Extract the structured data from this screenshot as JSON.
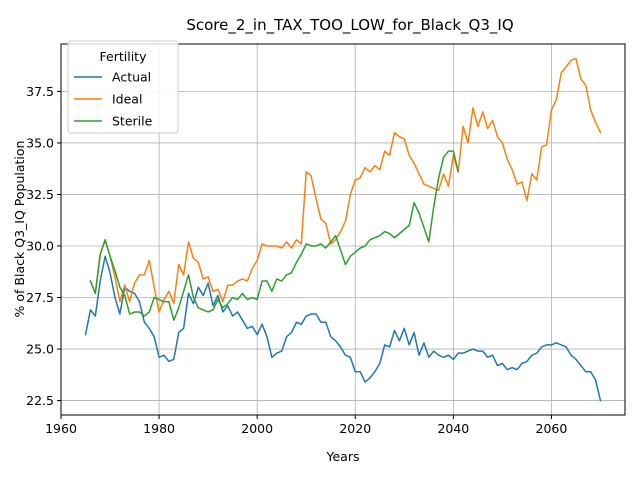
{
  "chart_data": {
    "type": "line",
    "title": "Score_2_in_TAX_TOO_LOW_for_Black_Q3_IQ",
    "xlabel": "Years",
    "ylabel": "% of Black Q3_IQ Population",
    "xlim": [
      1960,
      2075
    ],
    "ylim": [
      21.8,
      39.8
    ],
    "xticks": [
      1960,
      1980,
      2000,
      2020,
      2040,
      2060
    ],
    "yticks": [
      22.5,
      25.0,
      27.5,
      30.0,
      32.5,
      35.0,
      37.5
    ],
    "ytick_labels": [
      "22.5",
      "25.0",
      "27.5",
      "30.0",
      "32.5",
      "35.0",
      "37.5"
    ],
    "grid": true,
    "legend": {
      "title": "Fertility",
      "placement": "top-left"
    },
    "series": [
      {
        "name": "Actual",
        "color": "#1f77b4",
        "points": [
          [
            1965,
            25.7
          ],
          [
            1966,
            26.9
          ],
          [
            1967,
            26.6
          ],
          [
            1968,
            28.3
          ],
          [
            1969,
            29.5
          ],
          [
            1970,
            28.7
          ],
          [
            1971,
            27.5
          ],
          [
            1972,
            26.7
          ],
          [
            1973,
            28.0
          ],
          [
            1974,
            27.8
          ],
          [
            1975,
            27.7
          ],
          [
            1976,
            27.3
          ],
          [
            1977,
            26.3
          ],
          [
            1978,
            26.0
          ],
          [
            1979,
            25.6
          ],
          [
            1980,
            24.6
          ],
          [
            1981,
            24.7
          ],
          [
            1982,
            24.4
          ],
          [
            1983,
            24.5
          ],
          [
            1984,
            25.8
          ],
          [
            1985,
            26.0
          ],
          [
            1986,
            27.7
          ],
          [
            1987,
            27.2
          ],
          [
            1988,
            28.0
          ],
          [
            1989,
            27.6
          ],
          [
            1990,
            28.2
          ],
          [
            1991,
            27.1
          ],
          [
            1992,
            27.6
          ],
          [
            1993,
            26.8
          ],
          [
            1994,
            27.1
          ],
          [
            1995,
            26.6
          ],
          [
            1996,
            26.8
          ],
          [
            1997,
            26.4
          ],
          [
            1998,
            26.0
          ],
          [
            1999,
            26.1
          ],
          [
            2000,
            25.7
          ],
          [
            2001,
            26.2
          ],
          [
            2002,
            25.6
          ],
          [
            2003,
            24.6
          ],
          [
            2004,
            24.8
          ],
          [
            2005,
            24.9
          ],
          [
            2006,
            25.6
          ],
          [
            2007,
            25.8
          ],
          [
            2008,
            26.3
          ],
          [
            2009,
            26.2
          ],
          [
            2010,
            26.6
          ],
          [
            2011,
            26.7
          ],
          [
            2012,
            26.7
          ],
          [
            2013,
            26.3
          ],
          [
            2014,
            26.3
          ],
          [
            2015,
            25.6
          ],
          [
            2016,
            25.4
          ],
          [
            2017,
            25.1
          ],
          [
            2018,
            24.7
          ],
          [
            2019,
            24.6
          ],
          [
            2020,
            23.9
          ],
          [
            2021,
            23.9
          ],
          [
            2022,
            23.4
          ],
          [
            2023,
            23.6
          ],
          [
            2024,
            23.9
          ],
          [
            2025,
            24.3
          ],
          [
            2026,
            25.2
          ],
          [
            2027,
            25.1
          ],
          [
            2028,
            25.9
          ],
          [
            2029,
            25.4
          ],
          [
            2030,
            26.0
          ],
          [
            2031,
            25.2
          ],
          [
            2032,
            25.8
          ],
          [
            2033,
            24.7
          ],
          [
            2034,
            25.3
          ],
          [
            2035,
            24.6
          ],
          [
            2036,
            24.9
          ],
          [
            2037,
            24.7
          ],
          [
            2038,
            24.6
          ],
          [
            2039,
            24.7
          ],
          [
            2040,
            24.5
          ],
          [
            2041,
            24.8
          ],
          [
            2042,
            24.8
          ],
          [
            2043,
            24.9
          ],
          [
            2044,
            25.0
          ],
          [
            2045,
            24.9
          ],
          [
            2046,
            24.9
          ],
          [
            2047,
            24.6
          ],
          [
            2048,
            24.7
          ],
          [
            2049,
            24.2
          ],
          [
            2050,
            24.3
          ],
          [
            2051,
            24.0
          ],
          [
            2052,
            24.1
          ],
          [
            2053,
            24.0
          ],
          [
            2054,
            24.3
          ],
          [
            2055,
            24.4
          ],
          [
            2056,
            24.7
          ],
          [
            2057,
            24.8
          ],
          [
            2058,
            25.1
          ],
          [
            2059,
            25.2
          ],
          [
            2060,
            25.2
          ],
          [
            2061,
            25.3
          ],
          [
            2062,
            25.2
          ],
          [
            2063,
            25.1
          ],
          [
            2064,
            24.7
          ],
          [
            2065,
            24.5
          ],
          [
            2066,
            24.2
          ],
          [
            2067,
            23.9
          ],
          [
            2068,
            23.9
          ],
          [
            2069,
            23.5
          ],
          [
            2070,
            22.5
          ]
        ]
      },
      {
        "name": "Ideal",
        "color": "#ff7f0e",
        "points": [
          [
            1966,
            28.3
          ],
          [
            1967,
            27.7
          ],
          [
            1968,
            29.6
          ],
          [
            1969,
            30.3
          ],
          [
            1970,
            29.5
          ],
          [
            1971,
            28.5
          ],
          [
            1972,
            27.3
          ],
          [
            1973,
            28.1
          ],
          [
            1974,
            27.3
          ],
          [
            1975,
            28.2
          ],
          [
            1976,
            28.6
          ],
          [
            1977,
            28.6
          ],
          [
            1978,
            29.3
          ],
          [
            1979,
            28.0
          ],
          [
            1980,
            26.8
          ],
          [
            1981,
            27.4
          ],
          [
            1982,
            27.8
          ],
          [
            1983,
            27.2
          ],
          [
            1984,
            29.1
          ],
          [
            1985,
            28.6
          ],
          [
            1986,
            30.2
          ],
          [
            1987,
            29.4
          ],
          [
            1988,
            29.2
          ],
          [
            1989,
            28.4
          ],
          [
            1990,
            28.5
          ],
          [
            1991,
            27.8
          ],
          [
            1992,
            27.9
          ],
          [
            1993,
            27.3
          ],
          [
            1994,
            28.1
          ],
          [
            1995,
            28.1
          ],
          [
            1996,
            28.3
          ],
          [
            1997,
            28.4
          ],
          [
            1998,
            28.3
          ],
          [
            1999,
            28.9
          ],
          [
            2000,
            29.3
          ],
          [
            2001,
            30.1
          ],
          [
            2002,
            30.0
          ],
          [
            2003,
            30.0
          ],
          [
            2004,
            30.0
          ],
          [
            2005,
            29.9
          ],
          [
            2006,
            30.2
          ],
          [
            2007,
            29.9
          ],
          [
            2008,
            30.3
          ],
          [
            2009,
            30.1
          ],
          [
            2010,
            33.6
          ],
          [
            2011,
            33.4
          ],
          [
            2012,
            32.3
          ],
          [
            2013,
            31.3
          ],
          [
            2014,
            31.1
          ],
          [
            2015,
            30.1
          ],
          [
            2016,
            30.3
          ],
          [
            2017,
            30.7
          ],
          [
            2018,
            31.2
          ],
          [
            2019,
            32.5
          ],
          [
            2020,
            33.2
          ],
          [
            2021,
            33.3
          ],
          [
            2022,
            33.8
          ],
          [
            2023,
            33.6
          ],
          [
            2024,
            33.9
          ],
          [
            2025,
            33.7
          ],
          [
            2026,
            34.6
          ],
          [
            2027,
            34.4
          ],
          [
            2028,
            35.5
          ],
          [
            2029,
            35.3
          ],
          [
            2030,
            35.2
          ],
          [
            2031,
            34.4
          ],
          [
            2032,
            34.0
          ],
          [
            2033,
            33.5
          ],
          [
            2034,
            33.0
          ],
          [
            2035,
            32.9
          ],
          [
            2036,
            32.8
          ],
          [
            2037,
            32.7
          ],
          [
            2038,
            33.5
          ],
          [
            2039,
            32.9
          ],
          [
            2040,
            34.4
          ],
          [
            2041,
            33.6
          ],
          [
            2042,
            35.8
          ],
          [
            2043,
            35.0
          ],
          [
            2044,
            36.7
          ],
          [
            2045,
            35.8
          ],
          [
            2046,
            36.5
          ],
          [
            2047,
            35.7
          ],
          [
            2048,
            36.1
          ],
          [
            2049,
            35.3
          ],
          [
            2050,
            35.0
          ],
          [
            2051,
            34.2
          ],
          [
            2052,
            33.7
          ],
          [
            2053,
            33.0
          ],
          [
            2054,
            33.1
          ],
          [
            2055,
            32.2
          ],
          [
            2056,
            33.5
          ],
          [
            2057,
            33.2
          ],
          [
            2058,
            34.8
          ],
          [
            2059,
            34.9
          ],
          [
            2060,
            36.6
          ],
          [
            2061,
            37.1
          ],
          [
            2062,
            38.4
          ],
          [
            2063,
            38.7
          ],
          [
            2064,
            39.0
          ],
          [
            2065,
            39.1
          ],
          [
            2066,
            38.1
          ],
          [
            2067,
            37.8
          ],
          [
            2068,
            36.6
          ],
          [
            2069,
            36.0
          ],
          [
            2070,
            35.5
          ]
        ]
      },
      {
        "name": "Sterile",
        "color": "#2ca02c",
        "points": [
          [
            1966,
            28.3
          ],
          [
            1967,
            27.7
          ],
          [
            1968,
            29.6
          ],
          [
            1969,
            30.3
          ],
          [
            1970,
            29.5
          ],
          [
            1971,
            28.8
          ],
          [
            1972,
            28.0
          ],
          [
            1973,
            27.6
          ],
          [
            1974,
            26.7
          ],
          [
            1975,
            26.8
          ],
          [
            1976,
            26.8
          ],
          [
            1977,
            26.6
          ],
          [
            1978,
            26.8
          ],
          [
            1979,
            27.5
          ],
          [
            1980,
            27.4
          ],
          [
            1981,
            27.3
          ],
          [
            1982,
            27.3
          ],
          [
            1983,
            26.4
          ],
          [
            1984,
            27.0
          ],
          [
            1985,
            27.8
          ],
          [
            1986,
            28.6
          ],
          [
            1987,
            27.5
          ],
          [
            1988,
            27.0
          ],
          [
            1989,
            26.9
          ],
          [
            1990,
            26.8
          ],
          [
            1991,
            26.9
          ],
          [
            1992,
            27.4
          ],
          [
            1993,
            27.0
          ],
          [
            1994,
            27.2
          ],
          [
            1995,
            27.5
          ],
          [
            1996,
            27.4
          ],
          [
            1997,
            27.7
          ],
          [
            1998,
            27.4
          ],
          [
            1999,
            27.5
          ],
          [
            2000,
            27.4
          ],
          [
            2001,
            28.3
          ],
          [
            2002,
            28.3
          ],
          [
            2003,
            27.8
          ],
          [
            2004,
            28.4
          ],
          [
            2005,
            28.3
          ],
          [
            2006,
            28.6
          ],
          [
            2007,
            28.7
          ],
          [
            2008,
            29.2
          ],
          [
            2009,
            29.6
          ],
          [
            2010,
            30.1
          ],
          [
            2011,
            30.0
          ],
          [
            2012,
            30.0
          ],
          [
            2013,
            30.1
          ],
          [
            2014,
            29.9
          ],
          [
            2015,
            30.2
          ],
          [
            2016,
            30.5
          ],
          [
            2017,
            29.8
          ],
          [
            2018,
            29.1
          ],
          [
            2019,
            29.5
          ],
          [
            2020,
            29.7
          ],
          [
            2021,
            29.9
          ],
          [
            2022,
            30.0
          ],
          [
            2023,
            30.3
          ],
          [
            2024,
            30.4
          ],
          [
            2025,
            30.5
          ],
          [
            2026,
            30.7
          ],
          [
            2027,
            30.6
          ],
          [
            2028,
            30.4
          ],
          [
            2029,
            30.6
          ],
          [
            2030,
            30.8
          ],
          [
            2031,
            31.0
          ],
          [
            2032,
            32.1
          ],
          [
            2033,
            31.6
          ],
          [
            2034,
            30.9
          ],
          [
            2035,
            30.2
          ],
          [
            2036,
            31.9
          ],
          [
            2037,
            33.3
          ],
          [
            2038,
            34.3
          ],
          [
            2039,
            34.6
          ],
          [
            2040,
            34.6
          ],
          [
            2041,
            33.6
          ]
        ]
      }
    ]
  }
}
